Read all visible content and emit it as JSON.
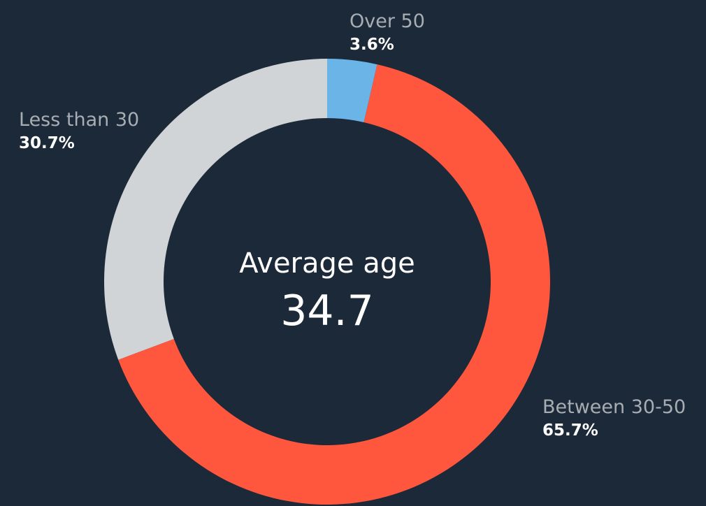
{
  "chart_data": {
    "type": "donut",
    "center_label": "Average age",
    "center_value": 34.7,
    "categories": [
      "Over 50",
      "Between 30-50",
      "Less than 30"
    ],
    "values": [
      3.6,
      65.7,
      30.7
    ],
    "value_labels": [
      "3.6%",
      "65.7%",
      "30.7%"
    ],
    "colors": [
      "#6ab4e8",
      "#ff563e",
      "#d1d4d7"
    ]
  }
}
